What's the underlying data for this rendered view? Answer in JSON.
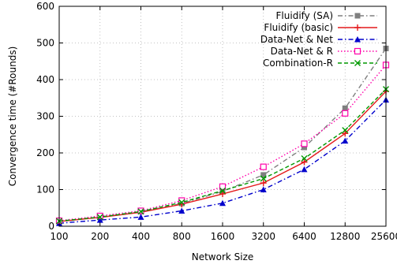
{
  "chart_data": {
    "type": "line",
    "xlabel": "Network Size",
    "ylabel": "Convergence time (#Rounds)",
    "categories": [
      "100",
      "200",
      "400",
      "800",
      "1600",
      "3200",
      "6400",
      "12800",
      "25600"
    ],
    "ylim": [
      0,
      600
    ],
    "yticks": [
      0,
      100,
      200,
      300,
      400,
      500,
      600
    ],
    "grid": true,
    "legend_position": "top-right",
    "series": [
      {
        "name": "Fluidify (SA)",
        "color": "#7f7f7f",
        "dash": "dash-dot",
        "marker": "square",
        "values": [
          12,
          25,
          40,
          62,
          95,
          140,
          215,
          322,
          485
        ]
      },
      {
        "name": "Fluidify (basic)",
        "color": "#e41a1c",
        "dash": "solid",
        "marker": "plus",
        "values": [
          13,
          24,
          38,
          60,
          88,
          118,
          175,
          253,
          368
        ]
      },
      {
        "name": "Data-Net & Net",
        "color": "#0000cc",
        "dash": "dash-dot",
        "marker": "triangle",
        "values": [
          8,
          17,
          25,
          42,
          63,
          100,
          155,
          233,
          345
        ]
      },
      {
        "name": "Data-Net & R",
        "color": "#ff00aa",
        "dash": "dotted",
        "marker": "square-open",
        "values": [
          15,
          28,
          42,
          70,
          108,
          162,
          225,
          308,
          440
        ]
      },
      {
        "name": "Combination-R",
        "color": "#009900",
        "dash": "dashed",
        "marker": "cross",
        "values": [
          14,
          25,
          40,
          65,
          97,
          130,
          185,
          262,
          374
        ]
      }
    ]
  }
}
